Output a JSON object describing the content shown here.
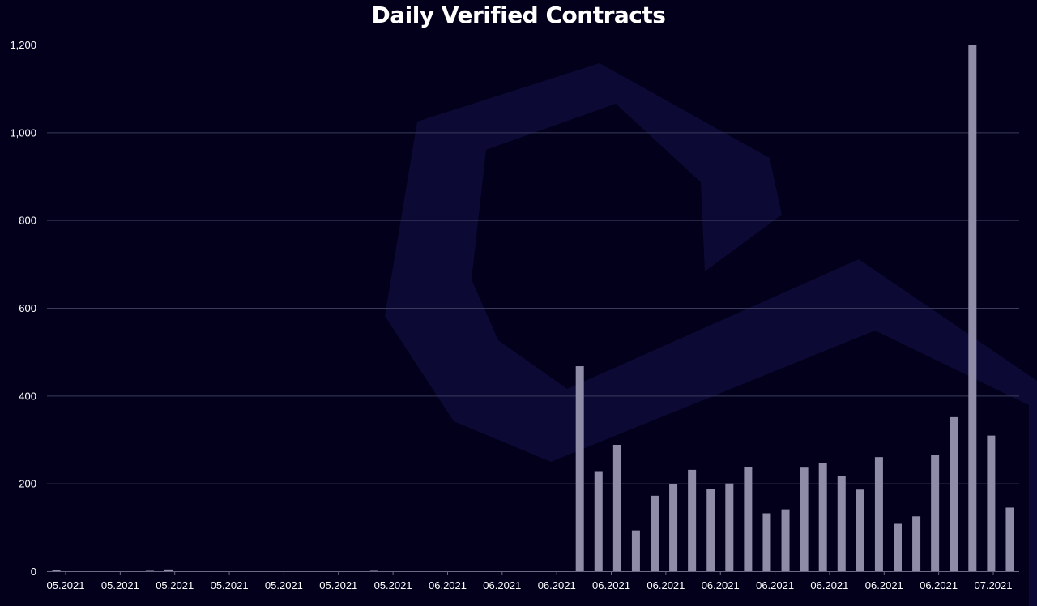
{
  "chart_data": {
    "type": "bar",
    "title": "Daily Verified Contracts",
    "xlabel": "",
    "ylabel": "",
    "ylim": [
      0,
      1200
    ],
    "yticks": [
      0,
      200,
      400,
      600,
      800,
      1000,
      1200
    ],
    "ytick_labels": [
      "0",
      "200",
      "400",
      "600",
      "800",
      "1,000",
      "1,200"
    ],
    "xtick_labels": [
      "05.2021",
      "05.2021",
      "05.2021",
      "05.2021",
      "05.2021",
      "05.2021",
      "05.2021",
      "06.2021",
      "06.2021",
      "06.2021",
      "06.2021",
      "06.2021",
      "06.2021",
      "06.2021",
      "06.2021",
      "06.2021",
      "06.2021",
      "07.2021"
    ],
    "grid": true,
    "color": "#8f8ca8",
    "values": [
      2,
      0,
      0,
      0,
      0,
      1,
      4,
      0,
      0,
      0,
      0,
      0,
      0,
      0,
      0,
      0,
      0,
      1,
      0,
      0,
      0,
      0,
      0,
      0,
      0,
      0,
      0,
      0,
      467,
      228,
      288,
      93,
      172,
      199,
      231,
      188,
      200,
      238,
      132,
      141,
      236,
      246,
      217,
      186,
      260,
      108,
      125,
      264,
      351,
      1200,
      309,
      145
    ]
  }
}
